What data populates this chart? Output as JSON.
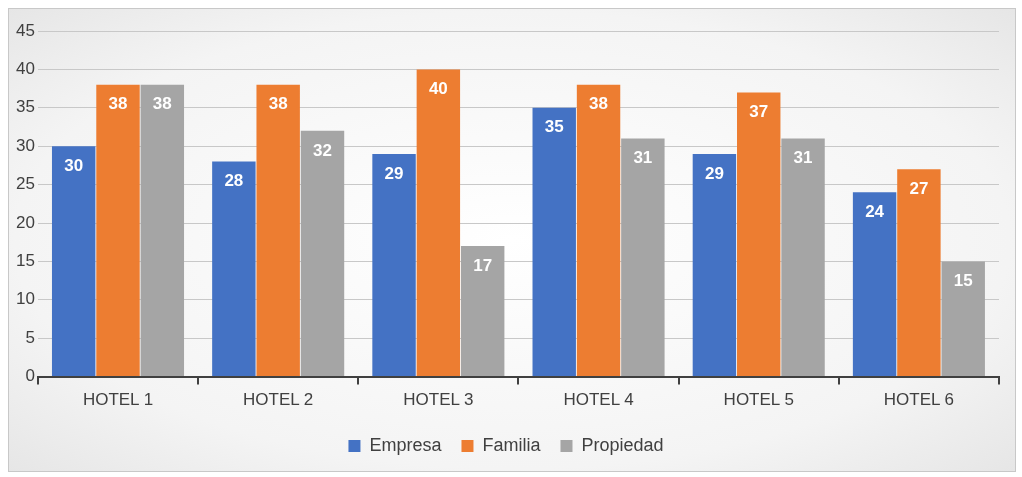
{
  "chart_data": {
    "type": "bar",
    "categories": [
      "HOTEL 1",
      "HOTEL 2",
      "HOTEL 3",
      "HOTEL 4",
      "HOTEL 5",
      "HOTEL 6"
    ],
    "series": [
      {
        "name": "Empresa",
        "color": "#4472c4",
        "values": [
          30,
          28,
          29,
          35,
          29,
          24
        ]
      },
      {
        "name": "Familia",
        "color": "#ed7d31",
        "values": [
          38,
          38,
          40,
          38,
          37,
          27
        ]
      },
      {
        "name": "Propiedad",
        "color": "#a5a5a5",
        "values": [
          38,
          32,
          17,
          31,
          31,
          15
        ]
      }
    ],
    "ylim": [
      0,
      45
    ],
    "yticks": [
      0,
      5,
      10,
      15,
      20,
      25,
      30,
      35,
      40,
      45
    ],
    "grid": "y",
    "legend": "bottom",
    "data_labels": true
  }
}
